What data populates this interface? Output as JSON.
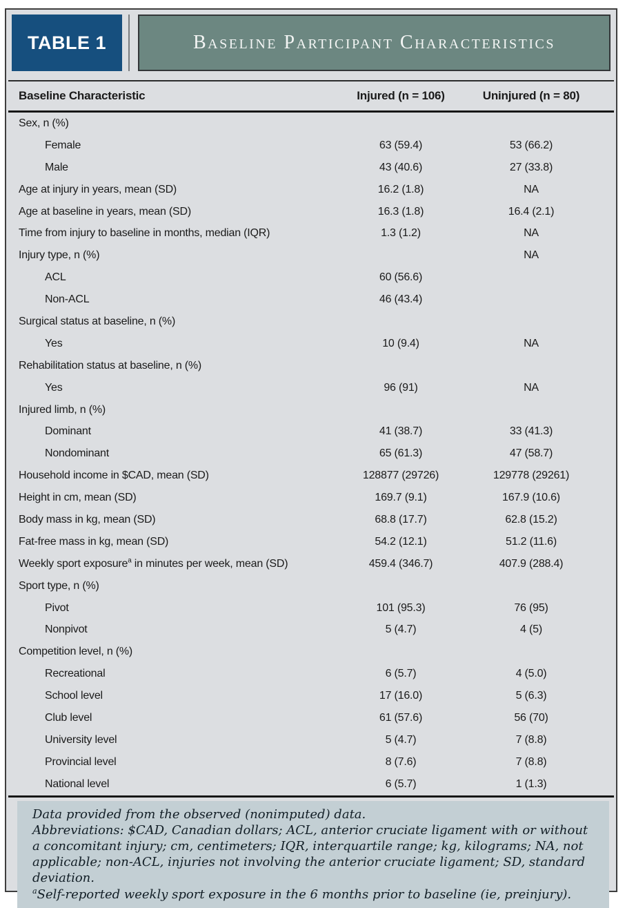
{
  "colors": {
    "badge_blue": "#164f7e",
    "sage_title": "#6c8781",
    "page_background": "#dcdee1",
    "footnote_background": "#c3cfd4",
    "frame_border": "#3e3e3e",
    "rule": "#161616",
    "text": "#1a1a1a"
  },
  "header": {
    "badge": "TABLE 1",
    "title": "Baseline Participant Characteristics"
  },
  "table": {
    "columns": [
      "Baseline Characteristic",
      "Injured (n = 106)",
      "Uninjured (n = 80)"
    ],
    "rows": [
      {
        "label": "Sex, n (%)",
        "indent": false,
        "injured": "",
        "uninjured": ""
      },
      {
        "label": "Female",
        "indent": true,
        "injured": "63 (59.4)",
        "uninjured": "53 (66.2)"
      },
      {
        "label": "Male",
        "indent": true,
        "injured": "43 (40.6)",
        "uninjured": "27 (33.8)"
      },
      {
        "label": "Age at injury in years, mean (SD)",
        "indent": false,
        "injured": "16.2 (1.8)",
        "uninjured": "NA"
      },
      {
        "label": "Age at baseline in years, mean (SD)",
        "indent": false,
        "injured": "16.3 (1.8)",
        "uninjured": "16.4 (2.1)"
      },
      {
        "label": "Time from injury to baseline in months, median (IQR)",
        "indent": false,
        "injured": "1.3 (1.2)",
        "uninjured": "NA"
      },
      {
        "label": "Injury type, n (%)",
        "indent": false,
        "injured": "",
        "uninjured": "NA"
      },
      {
        "label": "ACL",
        "indent": true,
        "injured": "60 (56.6)",
        "uninjured": ""
      },
      {
        "label": "Non-ACL",
        "indent": true,
        "injured": "46 (43.4)",
        "uninjured": ""
      },
      {
        "label": "Surgical status at baseline, n (%)",
        "indent": false,
        "injured": "",
        "uninjured": ""
      },
      {
        "label": "Yes",
        "indent": true,
        "injured": "10 (9.4)",
        "uninjured": "NA"
      },
      {
        "label": "Rehabilitation status at baseline, n (%)",
        "indent": false,
        "injured": "",
        "uninjured": ""
      },
      {
        "label": "Yes",
        "indent": true,
        "injured": "96 (91)",
        "uninjured": "NA"
      },
      {
        "label": "Injured limb, n (%)",
        "indent": false,
        "injured": "",
        "uninjured": ""
      },
      {
        "label": "Dominant",
        "indent": true,
        "injured": "41 (38.7)",
        "uninjured": "33 (41.3)"
      },
      {
        "label": "Nondominant",
        "indent": true,
        "injured": "65 (61.3)",
        "uninjured": "47 (58.7)"
      },
      {
        "label": "Household income in $CAD, mean (SD)",
        "indent": false,
        "injured": "128877 (29726)",
        "uninjured": "129778 (29261)"
      },
      {
        "label": "Height in cm, mean (SD)",
        "indent": false,
        "injured": "169.7 (9.1)",
        "uninjured": "167.9 (10.6)"
      },
      {
        "label": "Body mass in kg, mean (SD)",
        "indent": false,
        "injured": "68.8 (17.7)",
        "uninjured": "62.8 (15.2)"
      },
      {
        "label": "Fat-free mass in kg, mean (SD)",
        "indent": false,
        "injured": "54.2 (12.1)",
        "uninjured": "51.2 (11.6)"
      },
      {
        "label": "Weekly sport exposure",
        "sup": "a",
        "label_after": " in minutes per week, mean (SD)",
        "indent": false,
        "injured": "459.4 (346.7)",
        "uninjured": "407.9 (288.4)"
      },
      {
        "label": "Sport type, n (%)",
        "indent": false,
        "injured": "",
        "uninjured": ""
      },
      {
        "label": "Pivot",
        "indent": true,
        "injured": "101 (95.3)",
        "uninjured": "76 (95)"
      },
      {
        "label": "Nonpivot",
        "indent": true,
        "injured": "5 (4.7)",
        "uninjured": "4 (5)"
      },
      {
        "label": "Competition level, n (%)",
        "indent": false,
        "injured": "",
        "uninjured": ""
      },
      {
        "label": "Recreational",
        "indent": true,
        "injured": "6 (5.7)",
        "uninjured": "4 (5.0)"
      },
      {
        "label": "School level",
        "indent": true,
        "injured": "17 (16.0)",
        "uninjured": "5 (6.3)"
      },
      {
        "label": "Club level",
        "indent": true,
        "injured": "61 (57.6)",
        "uninjured": "56 (70)"
      },
      {
        "label": "University level",
        "indent": true,
        "injured": "5 (4.7)",
        "uninjured": "7 (8.8)"
      },
      {
        "label": "Provincial level",
        "indent": true,
        "injured": "8 (7.6)",
        "uninjured": "7 (8.8)"
      },
      {
        "label": "National level",
        "indent": true,
        "injured": "6 (5.7)",
        "uninjured": "1 (1.3)"
      }
    ]
  },
  "footnotes": {
    "lines": [
      {
        "text": "Data provided from the observed (nonimputed) data."
      },
      {
        "text": "Abbreviations: $CAD, Canadian dollars; ACL, anterior cruciate ligament with or without a concomitant injury; cm, centimeters; IQR, interquartile range; kg, kilograms; NA, not applicable; non-ACL, injuries not involving the anterior cruciate ligament; SD, standard deviation."
      },
      {
        "sup": "a",
        "text": "Self-reported weekly sport exposure in the 6 months prior to baseline (ie, preinjury)."
      }
    ]
  }
}
